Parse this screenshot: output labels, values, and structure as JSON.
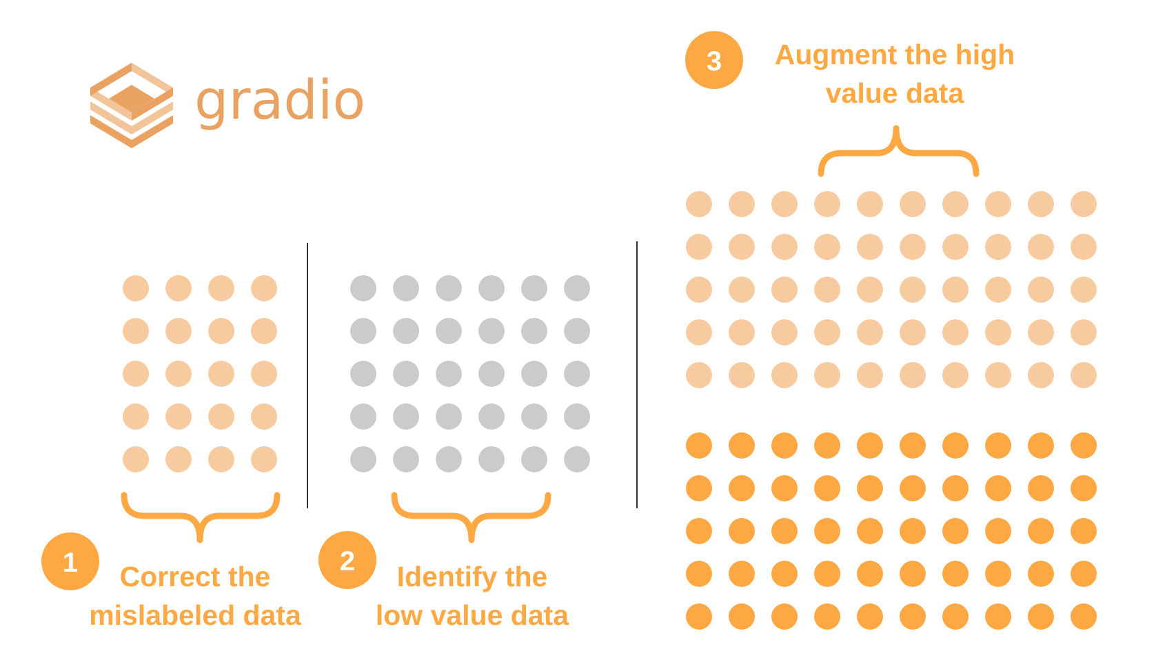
{
  "logo": {
    "text": "gradio",
    "icon": "gradio-logo-icon"
  },
  "colors": {
    "accent": "#fea843",
    "light_dot": "#f8ca9f",
    "gray_dot": "#cbcbcb",
    "logo": "#e9a262",
    "logo_light": "#f2c49a",
    "divider": "#333333",
    "badge_text": "#ffffff"
  },
  "steps": [
    {
      "number": "1",
      "line1": "Correct the",
      "line2": "mislabeled data"
    },
    {
      "number": "2",
      "line1": "Identify the",
      "line2": "low value data"
    },
    {
      "number": "3",
      "line1": "Augment the high",
      "line2": "value data"
    }
  ],
  "groups": {
    "mislabeled": {
      "rows": 5,
      "cols": 4,
      "fill": "light_dot"
    },
    "low_value": {
      "rows": 5,
      "cols": 6,
      "fill": "gray_dot"
    },
    "high_value_original": {
      "rows": 5,
      "cols": 10,
      "fill": "light_dot"
    },
    "high_value_augmented": {
      "rows": 5,
      "cols": 10,
      "fill": "accent"
    }
  }
}
